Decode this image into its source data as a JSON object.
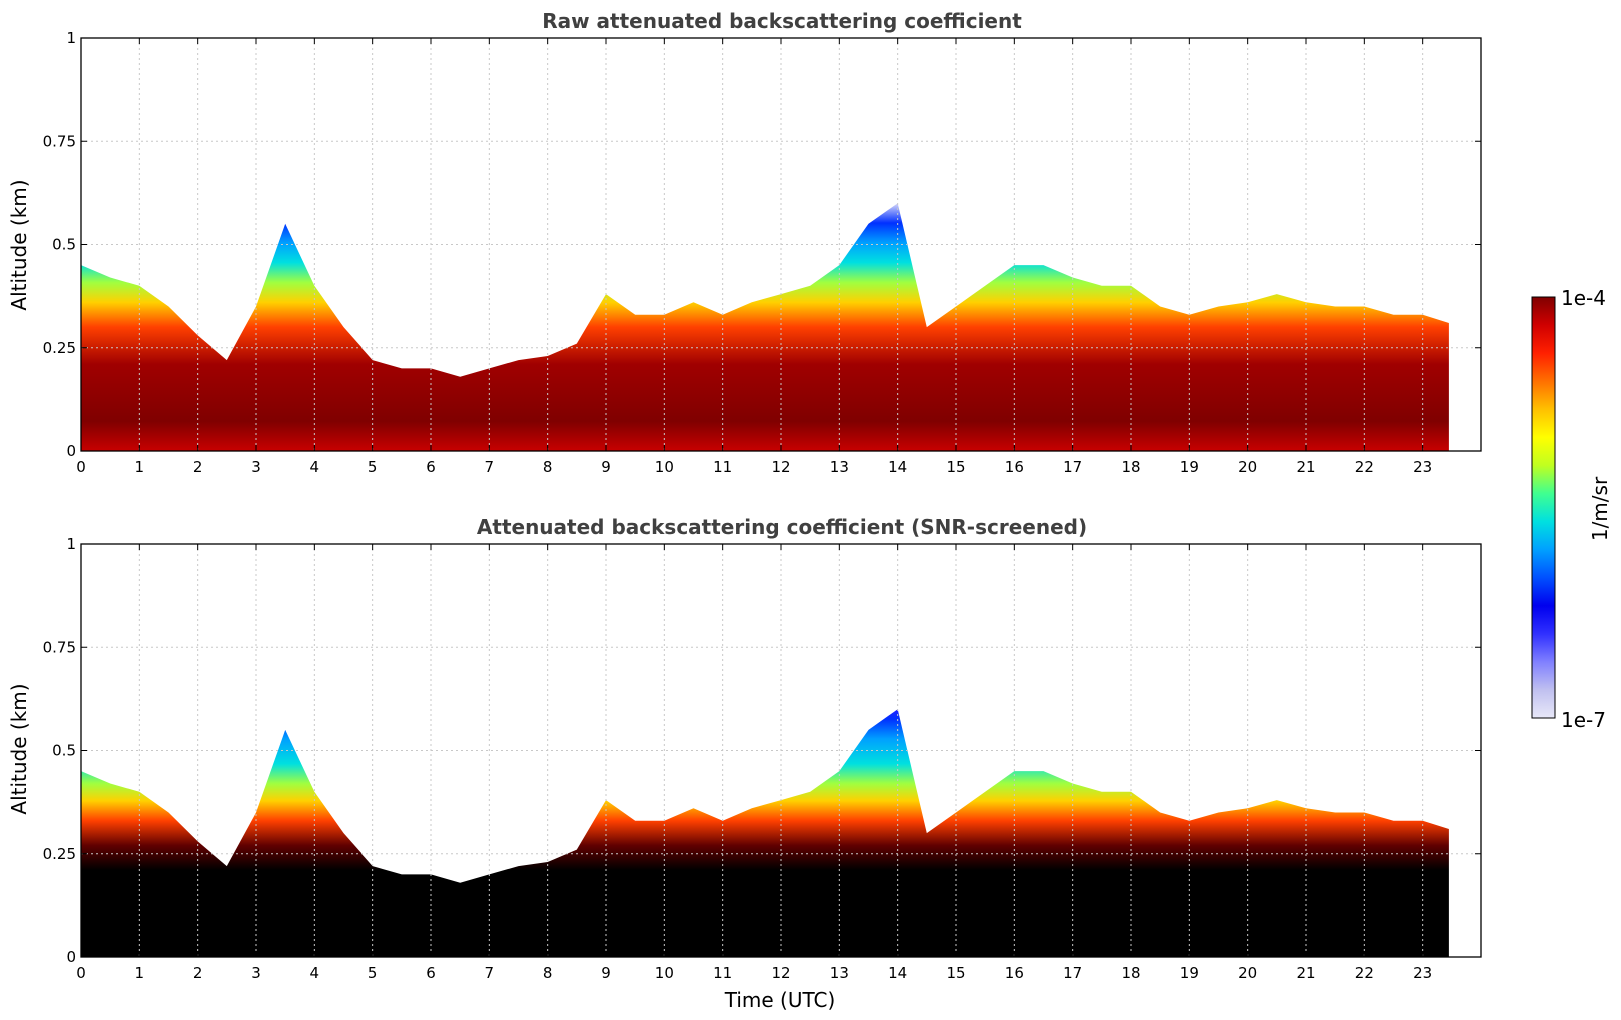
{
  "chart_data": [
    {
      "type": "heatmap",
      "title": "Raw attenuated backscattering coefficient",
      "ylabel": "Altitude (km)",
      "xlabel": "",
      "xlim": [
        0,
        24
      ],
      "ylim": [
        0,
        1
      ],
      "xticks": [
        0,
        1,
        2,
        3,
        4,
        5,
        6,
        7,
        8,
        9,
        10,
        11,
        12,
        13,
        14,
        15,
        16,
        17,
        18,
        19,
        20,
        21,
        22,
        23
      ],
      "yticks": [
        0,
        0.25,
        0.5,
        0.75,
        1
      ],
      "ytick_labels": [
        "0",
        "0.25",
        "0.5",
        "0.75",
        "1"
      ],
      "grid": true,
      "data_end_hour": 23.45,
      "boundary_layer_top_km": {
        "hours": [
          0,
          0.5,
          1,
          1.5,
          2,
          2.5,
          3,
          3.5,
          4,
          4.5,
          5,
          5.5,
          6,
          6.5,
          7,
          7.5,
          8,
          8.5,
          9,
          9.5,
          10,
          10.5,
          11,
          11.5,
          12,
          12.5,
          13,
          13.5,
          14,
          14.5,
          15,
          15.5,
          16,
          16.5,
          17,
          17.5,
          18,
          18.5,
          19,
          19.5,
          20,
          20.5,
          21,
          21.5,
          22,
          22.5,
          23,
          23.45
        ],
        "values": [
          0.45,
          0.42,
          0.4,
          0.35,
          0.28,
          0.22,
          0.35,
          0.55,
          0.4,
          0.3,
          0.22,
          0.2,
          0.2,
          0.18,
          0.2,
          0.22,
          0.23,
          0.26,
          0.38,
          0.33,
          0.33,
          0.36,
          0.33,
          0.36,
          0.38,
          0.4,
          0.45,
          0.55,
          0.6,
          0.3,
          0.35,
          0.4,
          0.45,
          0.45,
          0.42,
          0.4,
          0.4,
          0.35,
          0.33,
          0.35,
          0.36,
          0.38,
          0.36,
          0.35,
          0.35,
          0.33,
          0.33,
          0.31
        ]
      }
    },
    {
      "type": "heatmap",
      "title": "Attenuated backscattering coefficient (SNR-screened)",
      "ylabel": "Altitude (km)",
      "xlabel": "Time (UTC)",
      "xlim": [
        0,
        24
      ],
      "ylim": [
        0,
        1
      ],
      "xticks": [
        0,
        1,
        2,
        3,
        4,
        5,
        6,
        7,
        8,
        9,
        10,
        11,
        12,
        13,
        14,
        15,
        16,
        17,
        18,
        19,
        20,
        21,
        22,
        23
      ],
      "yticks": [
        0,
        0.25,
        0.5,
        0.75,
        1
      ],
      "ytick_labels": [
        "0",
        "0.25",
        "0.5",
        "0.75",
        "1"
      ],
      "grid": true,
      "data_end_hour": 23.45,
      "boundary_layer_top_km": {
        "hours": [
          0,
          0.5,
          1,
          1.5,
          2,
          2.5,
          3,
          3.5,
          4,
          4.5,
          5,
          5.5,
          6,
          6.5,
          7,
          7.5,
          8,
          8.5,
          9,
          9.5,
          10,
          10.5,
          11,
          11.5,
          12,
          12.5,
          13,
          13.5,
          14,
          14.5,
          15,
          15.5,
          16,
          16.5,
          17,
          17.5,
          18,
          18.5,
          19,
          19.5,
          20,
          20.5,
          21,
          21.5,
          22,
          22.5,
          23,
          23.45
        ],
        "values": [
          0.45,
          0.42,
          0.4,
          0.35,
          0.28,
          0.22,
          0.35,
          0.55,
          0.4,
          0.3,
          0.22,
          0.2,
          0.2,
          0.18,
          0.2,
          0.22,
          0.23,
          0.26,
          0.38,
          0.33,
          0.33,
          0.36,
          0.33,
          0.36,
          0.38,
          0.4,
          0.45,
          0.55,
          0.6,
          0.3,
          0.35,
          0.4,
          0.45,
          0.45,
          0.42,
          0.4,
          0.4,
          0.35,
          0.33,
          0.35,
          0.36,
          0.38,
          0.36,
          0.35,
          0.35,
          0.33,
          0.33,
          0.31
        ]
      }
    }
  ],
  "colorbar": {
    "max_label": "1e-4",
    "min_label": "1e-7",
    "unit_label": "1/m/sr",
    "colors": [
      "#e8e8f8",
      "#c0c0f0",
      "#8080ff",
      "#3030ff",
      "#0000ee",
      "#0050ff",
      "#00a0ff",
      "#00e0e0",
      "#40ff90",
      "#c0ff20",
      "#ffff00",
      "#ffc000",
      "#ff7000",
      "#ff2000",
      "#d00000",
      "#800000"
    ]
  }
}
